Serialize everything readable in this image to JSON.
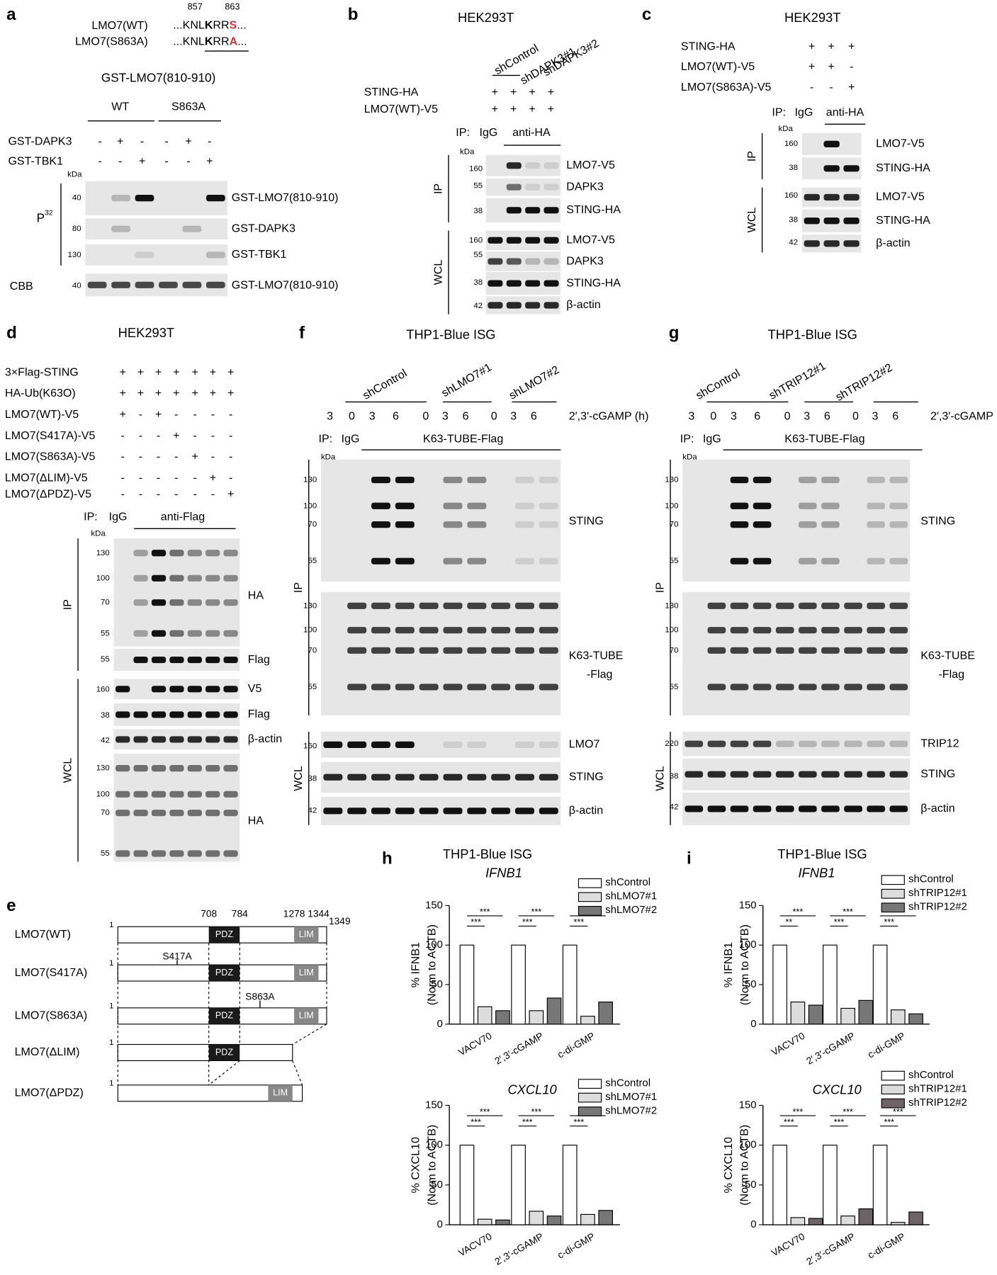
{
  "panel_labels": [
    "a",
    "b",
    "c",
    "d",
    "e",
    "f",
    "g",
    "h",
    "i"
  ],
  "panel_a": {
    "positions": [
      857,
      863
    ],
    "sequences": [
      {
        "name": "LMO7(WT)",
        "parts": [
          "...KNL",
          "K",
          "RR",
          "S",
          "..."
        ]
      },
      {
        "name": "LMO7(S863A)",
        "parts": [
          "...KNL",
          "K",
          "RR",
          "A",
          "..."
        ]
      }
    ],
    "title": "GST-LMO7(810-910)",
    "groups": [
      "WT",
      "S863A"
    ],
    "conditions": [
      {
        "name": "GST-DAPK3",
        "signs": [
          "-",
          "+",
          "-",
          "-",
          "+",
          "-"
        ]
      },
      {
        "name": "GST-TBK1",
        "signs": [
          "-",
          "-",
          "+",
          "-",
          "-",
          "+"
        ]
      }
    ],
    "kda": "kDa",
    "p32": {
      "base": "P",
      "sup": "32"
    },
    "blots": [
      {
        "markers": [
          40
        ],
        "label": "GST-LMO7(810-910)"
      },
      {
        "markers": [
          80
        ],
        "label": "GST-DAPK3"
      },
      {
        "markers": [
          130
        ],
        "label": "GST-TBK1"
      }
    ],
    "cbb": {
      "name": "CBB",
      "markers": [
        40
      ],
      "label": "GST-LMO7(810-910)"
    }
  },
  "panel_b": {
    "cell_line": "HEK293T",
    "shrna": [
      "shControl",
      "shDAPK3#1",
      "shDAPK3#2"
    ],
    "conditions": [
      {
        "name": "STING-HA",
        "signs": [
          "+",
          "+",
          "+",
          "+"
        ]
      },
      {
        "name": "LMO7(WT)-V5",
        "signs": [
          "+",
          "+",
          "+",
          "+"
        ]
      }
    ],
    "ip": "IP:",
    "ip_groups": [
      "IgG",
      "anti-HA"
    ],
    "kda": "kDa",
    "sections": [
      {
        "name": "IP",
        "blots": [
          {
            "markers": [
              160
            ],
            "label": "LMO7-V5"
          },
          {
            "markers": [
              55
            ],
            "label": "DAPK3"
          },
          {
            "markers": [
              38
            ],
            "label": "STING-HA"
          }
        ]
      },
      {
        "name": "WCL",
        "blots": [
          {
            "markers": [
              160
            ],
            "label": "LMO7-V5"
          },
          {
            "markers": [
              55
            ],
            "label": "DAPK3"
          },
          {
            "markers": [
              38
            ],
            "label": "STING-HA"
          },
          {
            "markers": [
              42
            ],
            "label": "β-actin"
          }
        ]
      }
    ]
  },
  "panel_c": {
    "cell_line": "HEK293T",
    "conditions": [
      {
        "name": "STING-HA",
        "signs": [
          "+",
          "+",
          "+"
        ]
      },
      {
        "name": "LMO7(WT)-V5",
        "signs": [
          "+",
          "+",
          "-"
        ]
      },
      {
        "name": "LMO7(S863A)-V5",
        "signs": [
          "-",
          "-",
          "+"
        ]
      }
    ],
    "ip": "IP:",
    "ip_groups": [
      "IgG",
      "anti-HA"
    ],
    "kda": "kDa",
    "sections": [
      {
        "name": "IP",
        "blots": [
          {
            "markers": [
              160
            ],
            "label": "LMO7-V5"
          },
          {
            "markers": [
              38
            ],
            "label": "STING-HA"
          }
        ]
      },
      {
        "name": "WCL",
        "blots": [
          {
            "markers": [
              160
            ],
            "label": "LMO7-V5"
          },
          {
            "markers": [
              38
            ],
            "label": "STING-HA"
          },
          {
            "markers": [
              42
            ],
            "label": "β-actin"
          }
        ]
      }
    ]
  },
  "panel_d": {
    "cell_line": "HEK293T",
    "conditions": [
      {
        "name": "3×Flag-STING",
        "signs": [
          "+",
          "+",
          "+",
          "+",
          "+",
          "+",
          "+"
        ]
      },
      {
        "name": "HA-Ub(K63O)",
        "signs": [
          "+",
          "+",
          "+",
          "+",
          "+",
          "+",
          "+"
        ]
      },
      {
        "name": "LMO7(WT)-V5",
        "signs": [
          "+",
          "-",
          "+",
          "-",
          "-",
          "-",
          "-"
        ]
      },
      {
        "name": "LMO7(S417A)-V5",
        "signs": [
          "-",
          "-",
          "-",
          "+",
          "-",
          "-",
          "-"
        ]
      },
      {
        "name": "LMO7(S863A)-V5",
        "signs": [
          "-",
          "-",
          "-",
          "-",
          "+",
          "-",
          "-"
        ]
      },
      {
        "name": "LMO7(ΔLIM)-V5",
        "signs": [
          "-",
          "-",
          "-",
          "-",
          "-",
          "+",
          "-"
        ]
      },
      {
        "name": "LMO7(ΔPDZ)-V5",
        "signs": [
          "-",
          "-",
          "-",
          "-",
          "-",
          "-",
          "+"
        ]
      }
    ],
    "ip": "IP:",
    "ip_groups": [
      "IgG",
      "anti-Flag"
    ],
    "kda": "kDa",
    "sections": [
      {
        "name": "IP",
        "blots": [
          {
            "markers": [
              130,
              100,
              70,
              55
            ],
            "label": "HA"
          },
          {
            "markers": [
              55
            ],
            "label": "Flag"
          }
        ]
      },
      {
        "name": "WCL",
        "blots": [
          {
            "markers": [
              160
            ],
            "label": "V5"
          },
          {
            "markers": [
              38
            ],
            "label": "Flag"
          },
          {
            "markers": [
              42
            ],
            "label": "β-actin"
          },
          {
            "markers": [
              130,
              100,
              70,
              55
            ],
            "label": "HA"
          }
        ]
      }
    ]
  },
  "panel_e": {
    "rows": [
      "LMO7(WT)",
      "LMO7(S417A)",
      "LMO7(S863A)",
      "LMO7(ΔLIM)",
      "LMO7(ΔPDZ)"
    ],
    "start": 1,
    "domains": {
      "pdz": "PDZ",
      "lim": "LIM"
    },
    "positions": [
      708,
      784,
      1278,
      1344,
      1349
    ],
    "mutations": [
      "S417A",
      "S863A"
    ]
  },
  "panel_f": {
    "cell_line": "THP1-Blue ISG",
    "shrna": [
      "shControl",
      "shLMO7#1",
      "shLMO7#2"
    ],
    "timepoints": [
      3,
      0,
      3,
      6,
      0,
      3,
      6,
      0,
      3,
      6
    ],
    "treatment": "2′,3′-cGAMP (h)",
    "ip": "IP:",
    "ip_groups": [
      "IgG",
      "K63-TUBE-Flag"
    ],
    "kda": "kDa",
    "sections": [
      {
        "name": "IP",
        "blots": [
          {
            "markers": [
              130,
              100,
              70,
              55
            ],
            "label": "STING"
          },
          {
            "markers": [
              130,
              100,
              70,
              55
            ],
            "label": [
              "K63-TUBE",
              "-Flag"
            ]
          }
        ]
      },
      {
        "name": "WCL",
        "blots": [
          {
            "markers": [
              160
            ],
            "label": "LMO7"
          },
          {
            "markers": [
              38
            ],
            "label": "STING"
          },
          {
            "markers": [
              42
            ],
            "label": "β-actin"
          }
        ]
      }
    ]
  },
  "panel_g": {
    "cell_line": "THP1-Blue ISG",
    "shrna": [
      "shControl",
      "shTRIP12#1",
      "shTRIP12#2"
    ],
    "timepoints": [
      3,
      0,
      3,
      6,
      0,
      3,
      6,
      0,
      3,
      6
    ],
    "treatment": "2′,3′-cGAMP (h)",
    "ip": "IP:",
    "ip_groups": [
      "IgG",
      "K63-TUBE-Flag"
    ],
    "kda": "kDa",
    "sections": [
      {
        "name": "IP",
        "blots": [
          {
            "markers": [
              130,
              100,
              70,
              55
            ],
            "label": "STING"
          },
          {
            "markers": [
              130,
              100,
              70,
              55
            ],
            "label": [
              "K63-TUBE",
              "-Flag"
            ]
          }
        ]
      },
      {
        "name": "WCL",
        "blots": [
          {
            "markers": [
              220
            ],
            "label": "TRIP12"
          },
          {
            "markers": [
              38
            ],
            "label": "STING"
          },
          {
            "markers": [
              42
            ],
            "label": "β-actin"
          }
        ]
      }
    ]
  },
  "panel_h": {
    "title": "THP1-Blue ISG"
  },
  "panel_i": {
    "title": "THP1-Blue ISG"
  },
  "chart_data": [
    {
      "type": "bar",
      "title": "IFNB1",
      "y_label": [
        "% IFNB1",
        "(Norm to ACTB)"
      ],
      "categories": [
        "VACV70",
        "2′,3′-cGAMP",
        "c-di-GMP"
      ],
      "series": [
        {
          "name": "shControl",
          "color": "#ffffff",
          "values": [
            100,
            100,
            100
          ]
        },
        {
          "name": "shLMO7#1",
          "color": "#dddddd",
          "values": [
            22,
            17,
            10
          ]
        },
        {
          "name": "shLMO7#2",
          "color": "#777777",
          "values": [
            17,
            33,
            28
          ]
        }
      ],
      "ylim": [
        0,
        150
      ],
      "yticks": [
        0,
        50,
        100,
        150
      ],
      "significance": [
        [
          "***",
          "***"
        ],
        [
          "***",
          "***"
        ],
        [
          "***",
          "***"
        ]
      ]
    },
    {
      "type": "bar",
      "title": "CXCL10",
      "y_label": [
        "% CXCL10",
        "(Norm to ACTB)"
      ],
      "categories": [
        "VACV70",
        "2′,3′-cGAMP",
        "c-di-GMP"
      ],
      "series": [
        {
          "name": "shControl",
          "color": "#ffffff",
          "values": [
            100,
            100,
            100
          ]
        },
        {
          "name": "shLMO7#1",
          "color": "#dddddd",
          "values": [
            7,
            17,
            13
          ]
        },
        {
          "name": "shLMO7#2",
          "color": "#777777",
          "values": [
            6,
            11,
            18
          ]
        }
      ],
      "ylim": [
        0,
        150
      ],
      "yticks": [
        0,
        50,
        100,
        150
      ],
      "significance": [
        [
          "***",
          "***"
        ],
        [
          "***",
          "***"
        ],
        [
          "***",
          "***"
        ]
      ]
    },
    {
      "type": "bar",
      "title": "IFNB1",
      "y_label": [
        "% IFNB1",
        "(Norm to ACTB)"
      ],
      "categories": [
        "VACV70",
        "2′,3′-cGAMP",
        "c-di-GMP"
      ],
      "series": [
        {
          "name": "shControl",
          "color": "#ffffff",
          "values": [
            100,
            100,
            100
          ]
        },
        {
          "name": "shTRIP12#1",
          "color": "#dddddd",
          "values": [
            28,
            20,
            18
          ]
        },
        {
          "name": "shTRIP12#2",
          "color": "#777777",
          "values": [
            24,
            30,
            13
          ]
        }
      ],
      "ylim": [
        0,
        150
      ],
      "yticks": [
        0,
        50,
        100,
        150
      ],
      "significance": [
        [
          "***",
          "**"
        ],
        [
          "***",
          "***"
        ],
        [
          "***",
          "***"
        ]
      ]
    },
    {
      "type": "bar",
      "title": "CXCL10",
      "y_label": [
        "% CXCL10",
        "(Norm to ACTB)"
      ],
      "categories": [
        "VACV70",
        "2′,3′-cGAMP",
        "c-di-GMP"
      ],
      "series": [
        {
          "name": "shControl",
          "color": "#ffffff",
          "values": [
            100,
            100,
            100
          ]
        },
        {
          "name": "shTRIP12#1",
          "color": "#dddddd",
          "values": [
            9,
            11,
            3
          ]
        },
        {
          "name": "shTRIP12#2",
          "color": "#6e6468",
          "values": [
            8,
            20,
            16
          ]
        }
      ],
      "ylim": [
        0,
        150
      ],
      "yticks": [
        0,
        50,
        100,
        150
      ],
      "significance": [
        [
          "***",
          "***"
        ],
        [
          "***",
          "***"
        ],
        [
          "***",
          "***"
        ]
      ]
    }
  ]
}
